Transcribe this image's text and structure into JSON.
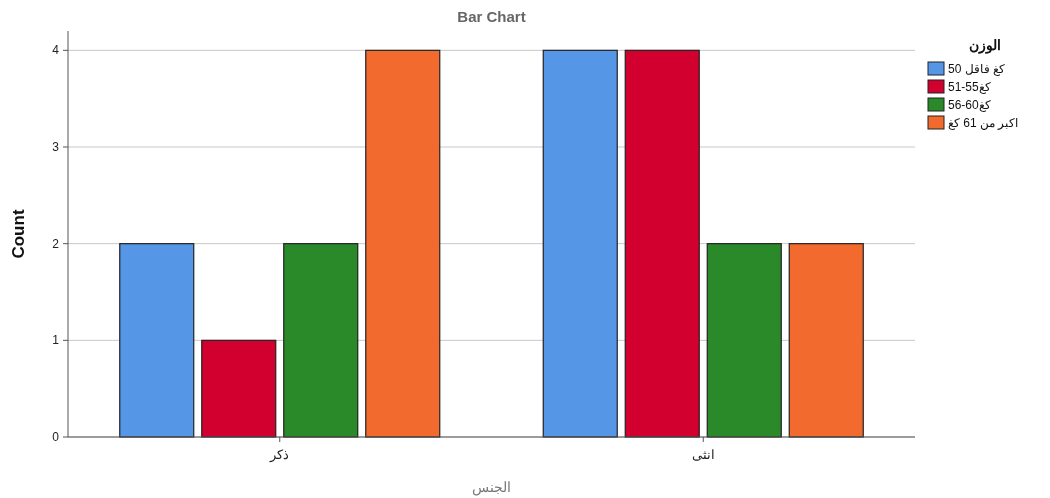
{
  "chart_data": {
    "type": "bar",
    "title": "Bar Chart",
    "xlabel": "الجنس",
    "ylabel": "Count",
    "legend_title": "الوزن",
    "categories": [
      "ذكر",
      "انثى"
    ],
    "series": [
      {
        "name": "50 كغ فاقل",
        "color": "#5596e6",
        "values": [
          2,
          4
        ]
      },
      {
        "name": "51-55كغ",
        "color": "#d2002f",
        "values": [
          1,
          4
        ]
      },
      {
        "name": "56-60كغ",
        "color": "#2a8a2a",
        "values": [
          2,
          2
        ]
      },
      {
        "name": "اكبر من 61 كغ",
        "color": "#f26a2e",
        "values": [
          4,
          2
        ]
      }
    ],
    "ylim": [
      0,
      4.2
    ],
    "yticks": [
      0,
      1,
      2,
      3,
      4
    ],
    "grid": "y",
    "legend": "top right"
  }
}
